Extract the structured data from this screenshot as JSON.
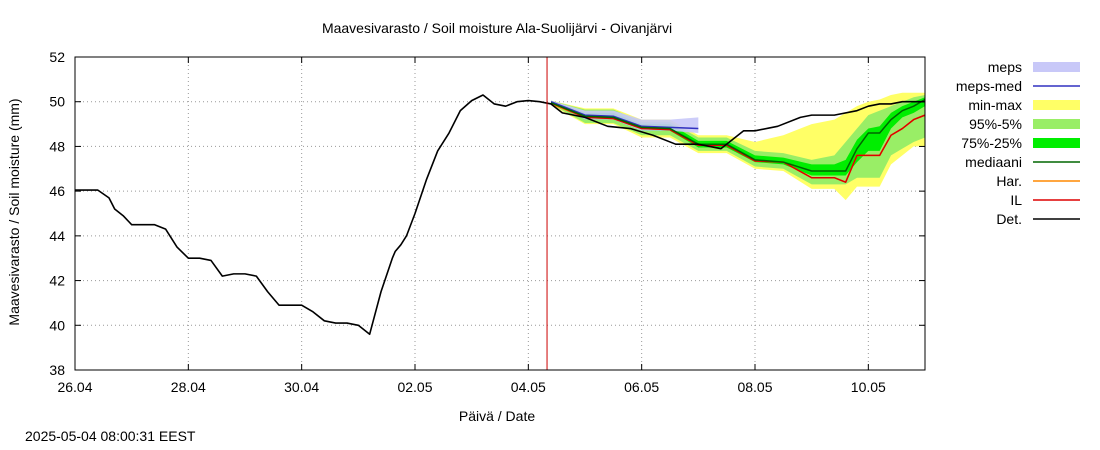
{
  "chart_data": {
    "type": "line",
    "title": "Maavesivarasto / Soil moisture   Ala-Suolijärvi - Oivanjärvi",
    "xlabel": "Päivä / Date",
    "ylabel": "Maavesivarasto / Soil moisture (mm)",
    "ylim": [
      38,
      52
    ],
    "yticks": [
      38,
      40,
      42,
      44,
      46,
      48,
      50,
      52
    ],
    "xlim_days": [
      0,
      15
    ],
    "xtick_labels": [
      "26.04",
      "28.04",
      "30.04",
      "02.05",
      "04.05",
      "06.05",
      "08.05",
      "10.05"
    ],
    "xtick_days": [
      0,
      2,
      4,
      6,
      8,
      10,
      12,
      14
    ],
    "grid": true,
    "legend_position": "right",
    "now_day": 8.33,
    "colors": {
      "meps": "#c8c8f8",
      "meps_med": "#3030c0",
      "min_max": "#ffff66",
      "p95_5": "#99ee66",
      "p75_25": "#00ee00",
      "mediaani": "#006600",
      "har": "#ff8800",
      "il": "#dd0000",
      "det": "#000000",
      "now_line": "#cc0000"
    },
    "legend": [
      "meps",
      "meps-med",
      "min-max",
      "95%-5%",
      "75%-25%",
      "mediaani",
      "Har.",
      "IL",
      "Det."
    ],
    "series": [
      {
        "name": "Det.",
        "x": [
          0,
          0.4,
          0.6,
          0.7,
          0.85,
          1.0,
          1.2,
          1.4,
          1.6,
          1.8,
          2.0,
          2.2,
          2.4,
          2.6,
          2.8,
          3.0,
          3.2,
          3.4,
          3.6,
          3.8,
          4.0,
          4.2,
          4.4,
          4.6,
          4.8,
          5.0,
          5.2,
          5.4,
          5.6,
          5.65,
          5.75,
          5.85,
          6.0,
          6.2,
          6.4,
          6.6,
          6.8,
          7.0,
          7.2,
          7.4,
          7.6,
          7.8,
          8.0,
          8.2,
          8.4,
          8.6,
          8.8,
          9.0,
          9.4,
          9.8,
          10.2,
          10.6,
          11.0,
          11.4,
          11.8,
          12.0,
          12.4,
          12.8,
          13.0,
          13.4,
          13.8,
          14.0,
          14.2,
          14.4,
          14.6,
          14.8,
          15.0
        ],
        "values": [
          46.05,
          46.05,
          45.7,
          45.2,
          44.9,
          44.5,
          44.5,
          44.5,
          44.3,
          43.5,
          43.0,
          43.0,
          42.9,
          42.2,
          42.3,
          42.3,
          42.2,
          41.5,
          40.9,
          40.9,
          40.9,
          40.6,
          40.2,
          40.1,
          40.1,
          40.0,
          39.6,
          41.5,
          43.0,
          43.3,
          43.6,
          44.0,
          45.0,
          46.5,
          47.8,
          48.6,
          49.6,
          50.05,
          50.3,
          49.9,
          49.8,
          50.0,
          50.05,
          50.0,
          49.9,
          49.5,
          49.4,
          49.3,
          48.9,
          48.8,
          48.5,
          48.1,
          48.1,
          47.9,
          48.7,
          48.7,
          48.9,
          49.3,
          49.4,
          49.4,
          49.6,
          49.8,
          49.9,
          49.9,
          50.0,
          50.0,
          50.0
        ]
      },
      {
        "name": "mediaani",
        "x": [
          8.4,
          9.0,
          9.5,
          10.0,
          10.5,
          11.0,
          11.5,
          12.0,
          12.5,
          13.0,
          13.4,
          13.6,
          13.8,
          14.0,
          14.2,
          14.4,
          14.6,
          14.8,
          15.0
        ],
        "values": [
          49.95,
          49.35,
          49.3,
          48.85,
          48.8,
          48.1,
          48.1,
          47.4,
          47.3,
          46.9,
          46.9,
          46.9,
          47.9,
          48.6,
          48.6,
          49.2,
          49.6,
          49.8,
          50.1
        ]
      },
      {
        "name": "IL",
        "x": [
          8.4,
          9.0,
          9.5,
          10.0,
          10.5,
          11.0,
          11.5,
          12.0,
          12.5,
          13.0,
          13.4,
          13.6,
          13.8,
          14.0,
          14.2,
          14.4,
          14.6,
          14.8,
          15.0
        ],
        "values": [
          49.95,
          49.3,
          49.25,
          48.8,
          48.75,
          48.05,
          48.05,
          47.35,
          47.3,
          46.6,
          46.6,
          46.4,
          47.6,
          47.6,
          47.6,
          48.5,
          48.8,
          49.2,
          49.4
        ]
      },
      {
        "name": "Har.",
        "x": [
          8.4,
          9.0,
          9.5,
          10.0,
          10.5,
          11.0,
          11.5,
          12.0,
          12.5,
          13.0,
          13.4,
          13.6,
          13.8,
          14.0,
          14.2,
          14.4,
          14.6,
          14.8,
          15.0
        ],
        "values": [
          49.9,
          49.3,
          49.25,
          48.8,
          48.75,
          48.05,
          48.05,
          47.35,
          47.3,
          46.6,
          46.6,
          46.4,
          47.6,
          47.6,
          47.6,
          48.5,
          48.8,
          49.2,
          49.4
        ]
      },
      {
        "name": "meps-med",
        "x": [
          8.4,
          9.0,
          9.5,
          10.0,
          10.5,
          11.0
        ],
        "values": [
          50.0,
          49.4,
          49.35,
          48.9,
          48.85,
          48.8
        ]
      }
    ],
    "bands": [
      {
        "name": "meps",
        "x": [
          8.4,
          9.0,
          9.5,
          10.0,
          10.5,
          11.0
        ],
        "low": [
          49.95,
          49.2,
          49.2,
          48.7,
          48.7,
          48.6
        ],
        "high": [
          50.05,
          49.6,
          49.6,
          49.2,
          49.2,
          49.3
        ]
      },
      {
        "name": "min-max",
        "x": [
          8.4,
          9.0,
          9.5,
          10.0,
          10.5,
          11.0,
          11.5,
          12.0,
          12.5,
          13.0,
          13.4,
          13.6,
          13.8,
          14.0,
          14.2,
          14.4,
          14.6,
          14.8,
          15.0
        ],
        "low": [
          49.85,
          49.0,
          49.0,
          48.4,
          48.4,
          47.7,
          47.7,
          47.0,
          46.9,
          46.1,
          46.1,
          45.6,
          46.2,
          46.2,
          46.2,
          47.2,
          47.6,
          48.0,
          48.0
        ],
        "high": [
          50.05,
          49.7,
          49.7,
          49.2,
          49.2,
          48.5,
          48.5,
          48.2,
          48.5,
          49.0,
          49.2,
          49.5,
          49.8,
          50.0,
          50.1,
          50.3,
          50.4,
          50.4,
          50.4
        ]
      },
      {
        "name": "95%-5%",
        "x": [
          8.4,
          9.0,
          9.5,
          10.0,
          10.5,
          11.0,
          11.5,
          12.0,
          12.5,
          13.0,
          13.4,
          13.6,
          13.8,
          14.0,
          14.2,
          14.4,
          14.6,
          14.8,
          15.0
        ],
        "low": [
          49.9,
          49.05,
          49.05,
          48.5,
          48.5,
          47.8,
          47.8,
          47.1,
          47.0,
          46.3,
          46.3,
          46.3,
          46.6,
          46.6,
          46.6,
          47.6,
          47.9,
          48.2,
          48.4
        ],
        "high": [
          50.05,
          49.65,
          49.65,
          49.1,
          49.1,
          48.4,
          48.4,
          47.8,
          47.7,
          47.4,
          47.6,
          48.2,
          48.8,
          49.4,
          49.6,
          49.8,
          50.0,
          50.2,
          50.3
        ]
      },
      {
        "name": "75%-25%",
        "x": [
          8.4,
          9.0,
          9.5,
          10.0,
          10.5,
          11.0,
          11.5,
          12.0,
          12.5,
          13.0,
          13.4,
          13.6,
          13.8,
          14.0,
          14.2,
          14.4,
          14.6,
          14.8,
          15.0
        ],
        "low": [
          49.93,
          49.2,
          49.2,
          48.7,
          48.7,
          47.95,
          47.95,
          47.3,
          47.2,
          46.7,
          46.7,
          46.7,
          47.3,
          47.8,
          47.8,
          48.8,
          49.3,
          49.5,
          49.8
        ],
        "high": [
          50.02,
          49.5,
          49.5,
          49.0,
          49.0,
          48.25,
          48.25,
          47.6,
          47.5,
          47.2,
          47.2,
          47.4,
          48.3,
          48.8,
          48.9,
          49.5,
          49.8,
          50.0,
          50.2
        ]
      }
    ]
  },
  "footer": {
    "timestamp": "2025-05-04  08:00:31 EEST"
  }
}
